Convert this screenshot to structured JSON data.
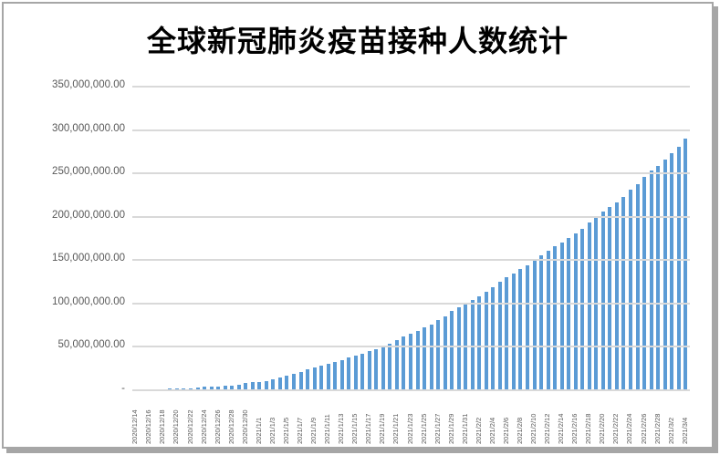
{
  "frame": {
    "background": "#ffffff",
    "border_color": "#a6a6a6",
    "shadow_color": "#a6a6a6"
  },
  "chart_data": {
    "type": "bar",
    "title": "全球新冠肺炎疫苗接种人数统计",
    "xlabel": "",
    "ylabel": "",
    "legend": "none",
    "grid": "horizontal",
    "bar_color": "#5b9bd5",
    "gridline_color": "#d9d9d9",
    "axis_label_color": "#595959",
    "title_color": "#000000",
    "ylim": [
      0,
      350000000
    ],
    "ytick_step": 50000000,
    "ytick_labels": [
      "350,000,000.00",
      "300,000,000.00",
      "250,000,000.00",
      "200,000,000.00",
      "150,000,000.00",
      "100,000,000.00",
      "50,000,000.00",
      "-"
    ],
    "x_label_every": 2,
    "categories": [
      "2020/12/14",
      "2020/12/15",
      "2020/12/16",
      "2020/12/17",
      "2020/12/18",
      "2020/12/19",
      "2020/12/20",
      "2020/12/21",
      "2020/12/22",
      "2020/12/23",
      "2020/12/24",
      "2020/12/25",
      "2020/12/26",
      "2020/12/27",
      "2020/12/28",
      "2020/12/29",
      "2020/12/30",
      "2020/12/31",
      "2021/1/1",
      "2021/1/2",
      "2021/1/3",
      "2021/1/4",
      "2021/1/5",
      "2021/1/6",
      "2021/1/7",
      "2021/1/8",
      "2021/1/9",
      "2021/1/10",
      "2021/1/11",
      "2021/1/12",
      "2021/1/13",
      "2021/1/14",
      "2021/1/15",
      "2021/1/16",
      "2021/1/17",
      "2021/1/18",
      "2021/1/19",
      "2021/1/20",
      "2021/1/21",
      "2021/1/22",
      "2021/1/23",
      "2021/1/24",
      "2021/1/25",
      "2021/1/26",
      "2021/1/27",
      "2021/1/28",
      "2021/1/29",
      "2021/1/30",
      "2021/1/31",
      "2021/2/1",
      "2021/2/2",
      "2021/2/3",
      "2021/2/4",
      "2021/2/5",
      "2021/2/6",
      "2021/2/7",
      "2021/2/8",
      "2021/2/9",
      "2021/2/10",
      "2021/2/11",
      "2021/2/12",
      "2021/2/13",
      "2021/2/14",
      "2021/2/15",
      "2021/2/16",
      "2021/2/17",
      "2021/2/18",
      "2021/2/19",
      "2021/2/20",
      "2021/2/21",
      "2021/2/22",
      "2021/2/23",
      "2021/2/24",
      "2021/2/25",
      "2021/2/26",
      "2021/2/27",
      "2021/2/28",
      "2021/3/1",
      "2021/3/2",
      "2021/3/3",
      "2021/3/4"
    ],
    "values": [
      600000,
      800000,
      1000000,
      1200000,
      1500000,
      1700000,
      1900000,
      2200000,
      2600000,
      3200000,
      3800000,
      4100000,
      4500000,
      5000000,
      5700000,
      6700000,
      8200000,
      9000000,
      9700000,
      11000000,
      12500000,
      14500000,
      16500000,
      19000000,
      21500000,
      24000000,
      26000000,
      28000000,
      30500000,
      33000000,
      35000000,
      37500000,
      40000000,
      42500000,
      45000000,
      47500000,
      50500000,
      54000000,
      58000000,
      62000000,
      65500000,
      68500000,
      72000000,
      76000000,
      80500000,
      85500000,
      91000000,
      95500000,
      99500000,
      104000000,
      108500000,
      113500000,
      119000000,
      125000000,
      130500000,
      135000000,
      139500000,
      144500000,
      150000000,
      155500000,
      161000000,
      166000000,
      170500000,
      175000000,
      180500000,
      186500000,
      193000000,
      199500000,
      205500000,
      211000000,
      216500000,
      222500000,
      231000000,
      238000000,
      246000000,
      253000000,
      259000000,
      266000000,
      273000000,
      281000000,
      290000000
    ]
  }
}
